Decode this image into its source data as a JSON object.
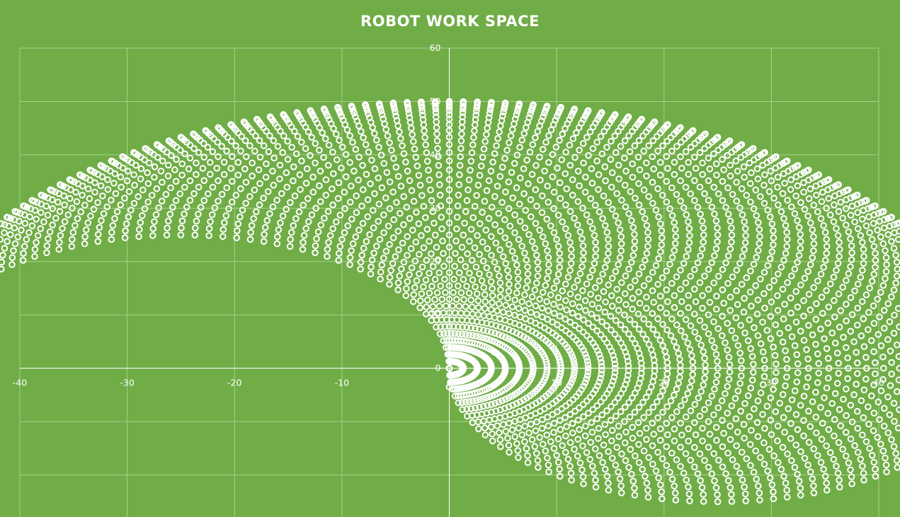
{
  "chart_data": {
    "type": "scatter",
    "title": "ROBOT WORK SPACE",
    "xlabel": "",
    "ylabel": "",
    "xlim": [
      -40,
      40
    ],
    "ylim": [
      -30,
      60
    ],
    "x_ticks": [
      -40,
      -30,
      -20,
      -10,
      0,
      10,
      20,
      30,
      40
    ],
    "y_ticks": [
      0,
      10,
      20,
      30,
      40,
      50,
      60
    ],
    "x_tick_labels": [
      "-40",
      "-30",
      "-20",
      "-10",
      "0",
      "10",
      "20",
      "30",
      "40"
    ],
    "y_tick_labels": [
      "0",
      "10",
      "20",
      "30",
      "40",
      "50",
      "60"
    ],
    "grid": true,
    "legend": "none",
    "marker": "hollow-circle",
    "colors": {
      "background": "#70ad47",
      "marker": "#ffffff",
      "grid": "#a9d08e"
    },
    "series": [
      {
        "generator": "two-link planar arm workspace sweep",
        "link1_length": 25,
        "link2_length": 25,
        "base_x": 0,
        "base_y": 0,
        "theta1_range_deg": [
          0,
          180
        ],
        "theta2_range_deg": [
          -180,
          0
        ],
        "angle_step_deg": 3
      }
    ],
    "extra_points": [
      {
        "x": 0,
        "y": 0
      },
      {
        "x": 0,
        "y": -3.5
      },
      {
        "x": 4.2,
        "y": 3
      }
    ]
  }
}
